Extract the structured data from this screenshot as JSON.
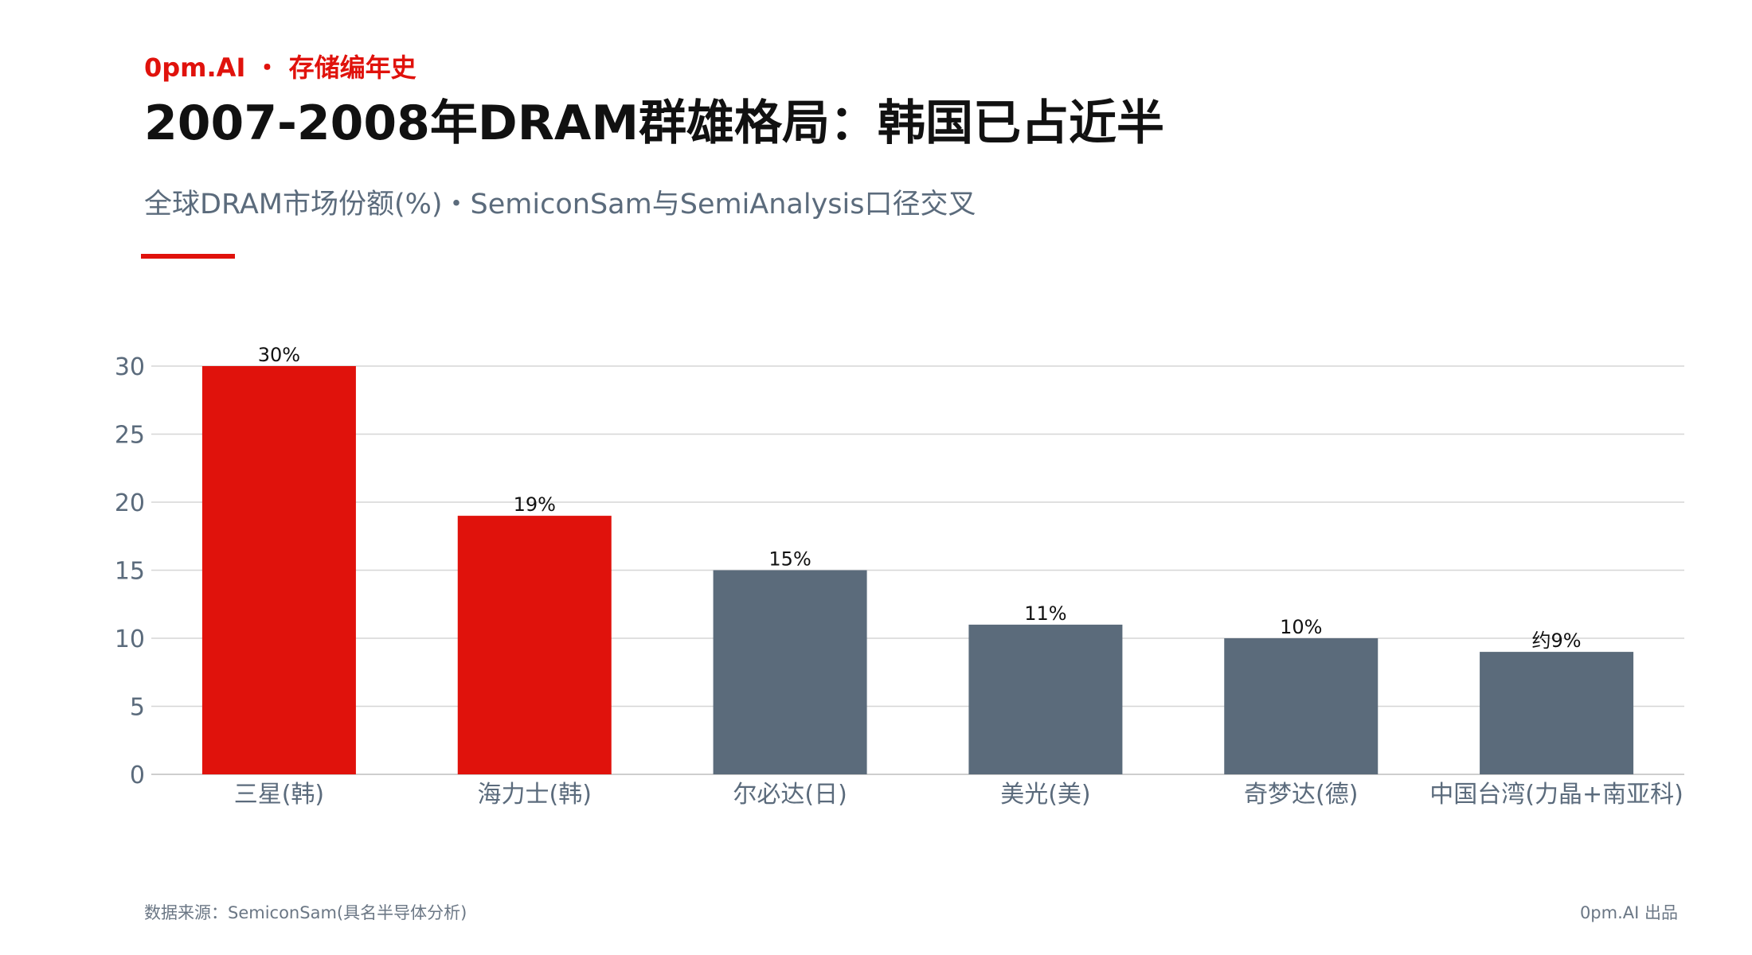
{
  "header": {
    "brand": "0pm.AI ・ 存储编年史",
    "title": "2007-2008年DRAM群雄格局：韩国已占近半",
    "subtitle": "全球DRAM市场份额(%)・SemiconSam与SemiAnalysis口径交叉"
  },
  "footer": {
    "source": "数据来源：SemiconSam(具名半导体分析)",
    "credit": "0pm.AI 出品"
  },
  "colors": {
    "accent": "#e0120c",
    "korea_bar": "#e0120c",
    "other_bar": "#5b6b7b",
    "grid": "#d6d6d6",
    "axis_text": "#5b6b7c",
    "label_text": "#111111"
  },
  "chart_data": {
    "type": "bar",
    "categories": [
      "三星(韩)",
      "海力士(韩)",
      "尔必达(日)",
      "美光(美)",
      "奇梦达(德)",
      "中国台湾(力晶+南亚科)"
    ],
    "values": [
      30,
      19,
      15,
      11,
      10,
      9
    ],
    "data_labels": [
      "30%",
      "19%",
      "15%",
      "11%",
      "10%",
      "约9%"
    ],
    "highlight": [
      true,
      true,
      false,
      false,
      false,
      false
    ],
    "ylim": [
      0,
      30
    ],
    "yticks": [
      0,
      5,
      10,
      15,
      20,
      25,
      30
    ],
    "grid": true,
    "title": "",
    "xlabel": "",
    "ylabel": ""
  }
}
